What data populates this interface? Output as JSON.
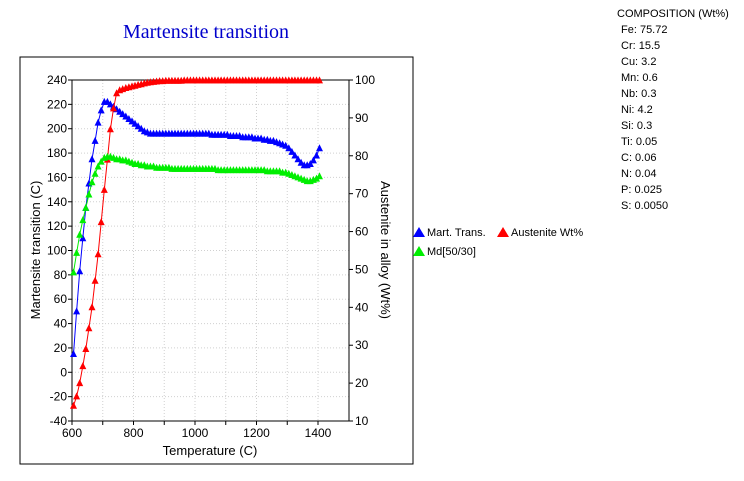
{
  "chart_data": {
    "type": "line",
    "title": "Martensite transition",
    "xlabel": "Temperature (C)",
    "ylabel": "Martensite transition (C)",
    "y2label": "Austenite in alloy (Wt%)",
    "xlim": [
      600,
      1450
    ],
    "ylim": [
      -40,
      240
    ],
    "y2lim": [
      10,
      100
    ],
    "x_ticks": [
      "600",
      "800",
      "1000",
      "1200",
      "1400"
    ],
    "y_ticks": [
      "-40",
      "-20",
      "0",
      "20",
      "40",
      "60",
      "80",
      "100",
      "120",
      "140",
      "160",
      "180",
      "200",
      "220",
      "240"
    ],
    "y2_ticks": [
      "10",
      "20",
      "30",
      "40",
      "50",
      "60",
      "70",
      "80",
      "90",
      "100"
    ],
    "grid": true,
    "legend_position": "right",
    "series": [
      {
        "name": "Mart. Trans.",
        "color": "#0000ff",
        "axis": "left",
        "x": [
          605,
          615,
          625,
          635,
          645,
          655,
          665,
          675,
          685,
          695,
          705,
          715,
          725,
          735,
          745,
          755,
          765,
          775,
          785,
          795,
          805,
          815,
          825,
          835,
          845,
          855,
          865,
          875,
          885,
          895,
          905,
          915,
          925,
          935,
          945,
          955,
          965,
          975,
          985,
          995,
          1005,
          1015,
          1025,
          1035,
          1045,
          1055,
          1065,
          1075,
          1085,
          1095,
          1105,
          1115,
          1125,
          1135,
          1145,
          1155,
          1165,
          1175,
          1185,
          1195,
          1205,
          1215,
          1225,
          1235,
          1245,
          1255,
          1265,
          1275,
          1285,
          1295,
          1305,
          1315,
          1325,
          1335,
          1345,
          1355,
          1365,
          1375,
          1385,
          1395,
          1405
        ],
        "y": [
          15,
          50,
          83,
          110,
          135,
          155,
          175,
          190,
          205,
          215,
          222,
          222,
          220,
          218,
          216,
          214,
          212,
          210,
          208,
          206,
          204,
          202,
          200,
          198,
          197,
          196,
          196,
          196,
          196,
          196,
          196,
          196,
          196,
          196,
          196,
          196,
          196,
          196,
          196,
          196,
          196,
          196,
          196,
          196,
          196,
          195,
          195,
          195,
          195,
          195,
          195,
          194,
          194,
          194,
          194,
          193,
          193,
          193,
          193,
          192,
          192,
          192,
          191,
          191,
          190,
          190,
          189,
          188,
          187,
          186,
          184,
          181,
          178,
          175,
          172,
          170,
          170,
          171,
          174,
          178,
          184
        ]
      },
      {
        "name": "Austenite Wt%",
        "color": "#ff0000",
        "axis": "right",
        "x": [
          605,
          615,
          625,
          635,
          645,
          655,
          665,
          675,
          685,
          695,
          705,
          715,
          725,
          735,
          745,
          755,
          765,
          775,
          785,
          795,
          805,
          815,
          825,
          835,
          845,
          855,
          865,
          875,
          885,
          895,
          905,
          915,
          925,
          935,
          945,
          955,
          965,
          975,
          985,
          995,
          1005,
          1015,
          1025,
          1035,
          1045,
          1055,
          1065,
          1075,
          1085,
          1095,
          1105,
          1115,
          1125,
          1135,
          1145,
          1155,
          1165,
          1175,
          1185,
          1195,
          1205,
          1215,
          1225,
          1235,
          1245,
          1255,
          1265,
          1275,
          1285,
          1295,
          1305,
          1315,
          1325,
          1335,
          1345,
          1355,
          1365,
          1375,
          1385,
          1395,
          1405
        ],
        "y": [
          14,
          16.5,
          20,
          24.5,
          29,
          34.5,
          40,
          47,
          54,
          62.5,
          71,
          79,
          87,
          92.5,
          96.5,
          97.3,
          97.6,
          97.9,
          98.1,
          98.3,
          98.5,
          98.7,
          98.9,
          99.1,
          99.3,
          99.4,
          99.5,
          99.6,
          99.7,
          99.7,
          99.8,
          99.8,
          99.8,
          99.8,
          99.8,
          99.8,
          99.9,
          99.9,
          99.9,
          99.9,
          99.9,
          99.9,
          99.9,
          99.9,
          99.9,
          99.9,
          99.9,
          99.9,
          99.9,
          99.9,
          99.9,
          99.9,
          99.9,
          99.9,
          99.9,
          99.9,
          99.9,
          99.9,
          99.9,
          99.9,
          99.9,
          99.9,
          99.9,
          99.9,
          99.9,
          99.9,
          99.9,
          99.9,
          99.9,
          99.9,
          99.9,
          99.9,
          99.9,
          99.9,
          99.9,
          99.9,
          99.9,
          99.9,
          99.9,
          99.9,
          99.9
        ]
      },
      {
        "name": "Md[50/30]",
        "color": "#00ee00",
        "axis": "left",
        "x": [
          605,
          615,
          625,
          635,
          645,
          655,
          665,
          675,
          685,
          695,
          705,
          715,
          725,
          735,
          745,
          755,
          765,
          775,
          785,
          795,
          805,
          815,
          825,
          835,
          845,
          855,
          865,
          875,
          885,
          895,
          905,
          915,
          925,
          935,
          945,
          955,
          965,
          975,
          985,
          995,
          1005,
          1015,
          1025,
          1035,
          1045,
          1055,
          1065,
          1075,
          1085,
          1095,
          1105,
          1115,
          1125,
          1135,
          1145,
          1155,
          1165,
          1175,
          1185,
          1195,
          1205,
          1215,
          1225,
          1235,
          1245,
          1255,
          1265,
          1275,
          1285,
          1295,
          1305,
          1315,
          1325,
          1335,
          1345,
          1355,
          1365,
          1375,
          1385,
          1395,
          1405
        ],
        "y": [
          82,
          98,
          113,
          125,
          135,
          146,
          156,
          163,
          169,
          173,
          176,
          177,
          177,
          176,
          175,
          175,
          174,
          174,
          173,
          172,
          171,
          171,
          170,
          170,
          169,
          169,
          169,
          168,
          168,
          168,
          168,
          168,
          167,
          167,
          167,
          167,
          167,
          167,
          167,
          167,
          167,
          167,
          167,
          167,
          167,
          167,
          167,
          166,
          166,
          166,
          166,
          166,
          166,
          166,
          166,
          166,
          166,
          166,
          166,
          166,
          166,
          166,
          166,
          165,
          165,
          165,
          165,
          165,
          164,
          164,
          163,
          162,
          161,
          160,
          159,
          158,
          157,
          157,
          158,
          159,
          161
        ]
      }
    ]
  },
  "composition": {
    "title": "COMPOSITION (Wt%)",
    "items": [
      "Fe: 75.72",
      "Cr: 15.5",
      "Cu: 3.2",
      "Mn: 0.6",
      "Nb: 0.3",
      "Ni: 4.2",
      "Si: 0.3",
      "Ti: 0.05",
      "C: 0.06",
      "N: 0.04",
      "P: 0.025",
      "S: 0.0050"
    ]
  }
}
